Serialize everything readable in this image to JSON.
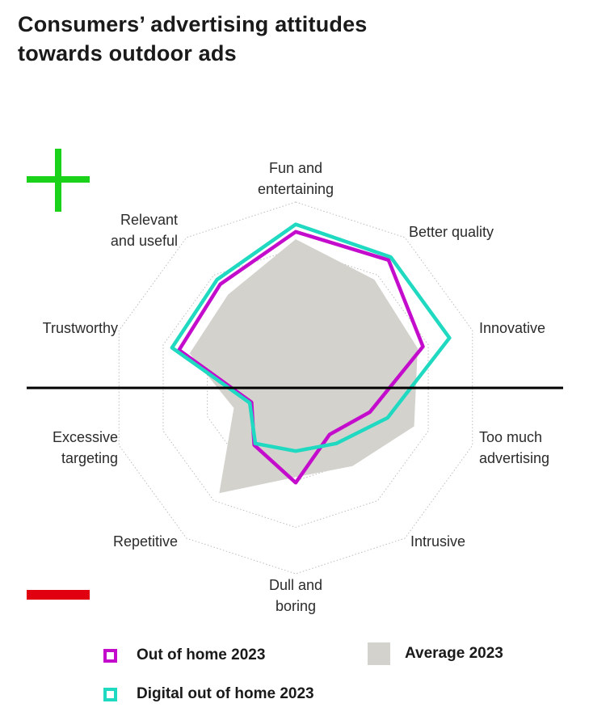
{
  "title": {
    "line1": "Consumers’ advertising attitudes",
    "line2": "towards outdoor ads"
  },
  "colors": {
    "plus": "#19d219",
    "minus": "#e1000f",
    "out_of_home": "#c40ccc",
    "digital_out_of_home": "#1fd9c1",
    "average": "#d3d2cd",
    "grid": "#bdbdbd",
    "divider": "#000000"
  },
  "icons": {
    "positive": "plus-icon",
    "negative": "minus-icon"
  },
  "chart_data": {
    "type": "radar",
    "title": "Consumers’ advertising attitudes towards outdoor ads",
    "axes": [
      {
        "label_lines": [
          "Fun and",
          "entertaining"
        ]
      },
      {
        "label_lines": [
          "Better quality"
        ]
      },
      {
        "label_lines": [
          "Innovative"
        ]
      },
      {
        "label_lines": [
          "Too much",
          "advertising"
        ]
      },
      {
        "label_lines": [
          "Intrusive"
        ]
      },
      {
        "label_lines": [
          "Dull and",
          "boring"
        ]
      },
      {
        "label_lines": [
          "Repetitive"
        ]
      },
      {
        "label_lines": [
          "Excessive",
          "targeting"
        ]
      },
      {
        "label_lines": [
          "Trustworthy"
        ]
      },
      {
        "label_lines": [
          "Relevant",
          "and useful"
        ]
      }
    ],
    "rlim": [
      0,
      1
    ],
    "grid_levels": [
      0.25,
      0.5,
      0.75,
      1.0
    ],
    "grid": true,
    "divider_label_top": "+",
    "divider_label_bottom": "−",
    "series": [
      {
        "name": "Average 2023",
        "key": "average",
        "style": "fill",
        "values": [
          0.8,
          0.72,
          0.69,
          0.67,
          0.52,
          0.48,
          0.7,
          0.35,
          0.6,
          0.62
        ]
      },
      {
        "name": "Out of home 2023",
        "key": "out_of_home",
        "style": "outline",
        "values": [
          0.84,
          0.85,
          0.72,
          0.42,
          0.31,
          0.51,
          0.38,
          0.25,
          0.66,
          0.69
        ]
      },
      {
        "name": "Digital out of home 2023",
        "key": "digital_out_of_home",
        "style": "outline",
        "values": [
          0.88,
          0.87,
          0.87,
          0.52,
          0.37,
          0.34,
          0.37,
          0.26,
          0.7,
          0.72
        ]
      }
    ]
  },
  "legend": [
    {
      "key": "out_of_home",
      "label": "Out of home 2023",
      "style": "outline"
    },
    {
      "key": "average",
      "label": "Average 2023",
      "style": "fill"
    },
    {
      "key": "digital_out_of_home",
      "label": "Digital out of home 2023",
      "style": "outline"
    }
  ]
}
